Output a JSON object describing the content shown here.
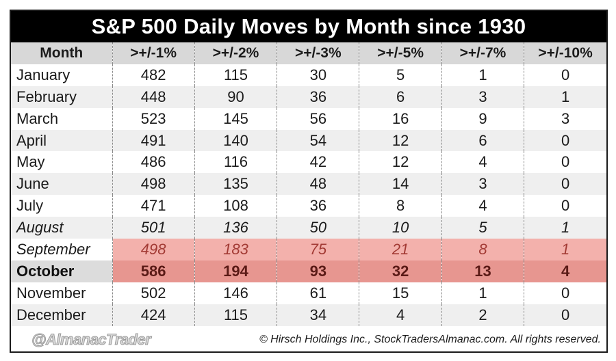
{
  "chart_data": {
    "type": "table",
    "title": "S&P 500 Daily Moves by Month since 1930",
    "columns": [
      "Month",
      ">+/-1%",
      ">+/-2%",
      ">+/-3%",
      ">+/-5%",
      ">+/-7%",
      ">+/-10%"
    ],
    "rows": [
      {
        "month": "January",
        "values": [
          482,
          115,
          30,
          5,
          1,
          0
        ]
      },
      {
        "month": "February",
        "values": [
          448,
          90,
          36,
          6,
          3,
          1
        ]
      },
      {
        "month": "March",
        "values": [
          523,
          145,
          56,
          16,
          9,
          3
        ]
      },
      {
        "month": "April",
        "values": [
          491,
          140,
          54,
          12,
          6,
          0
        ]
      },
      {
        "month": "May",
        "values": [
          486,
          116,
          42,
          12,
          4,
          0
        ]
      },
      {
        "month": "June",
        "values": [
          498,
          135,
          48,
          14,
          3,
          0
        ]
      },
      {
        "month": "July",
        "values": [
          471,
          108,
          36,
          8,
          4,
          0
        ]
      },
      {
        "month": "August",
        "values": [
          501,
          136,
          50,
          10,
          5,
          1
        ]
      },
      {
        "month": "September",
        "values": [
          498,
          183,
          75,
          21,
          8,
          1
        ]
      },
      {
        "month": "October",
        "values": [
          586,
          194,
          93,
          32,
          13,
          4
        ]
      },
      {
        "month": "November",
        "values": [
          502,
          146,
          61,
          15,
          1,
          0
        ]
      },
      {
        "month": "December",
        "values": [
          424,
          115,
          34,
          4,
          2,
          0
        ]
      }
    ],
    "highlight_rows": [
      "September",
      "October"
    ],
    "highlight_color": "#e79690"
  },
  "footer": {
    "handle": "@AlmanacTrader",
    "copyright": "© Hirsch Holdings Inc., StockTradersAlmanac.com. All rights reserved."
  }
}
